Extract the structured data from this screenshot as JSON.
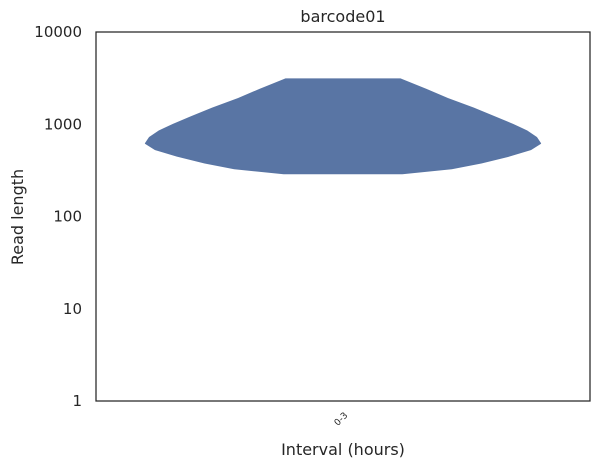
{
  "chart_data": {
    "type": "violin",
    "title": "barcode01",
    "xlabel": "Interval (hours)",
    "ylabel": "Read length",
    "yscale": "log",
    "ylim": [
      1,
      10000
    ],
    "yticks": [
      "1",
      "10",
      "100",
      "1000",
      "10000"
    ],
    "categories": [
      "0-3"
    ],
    "grid": false,
    "violin_color": "#5975a4",
    "violins": [
      {
        "category": "0-3",
        "min": 290,
        "max": 3100,
        "profile": [
          {
            "y": 290,
            "density": 0.3
          },
          {
            "y": 330,
            "density": 0.55
          },
          {
            "y": 380,
            "density": 0.7
          },
          {
            "y": 450,
            "density": 0.84
          },
          {
            "y": 530,
            "density": 0.95
          },
          {
            "y": 620,
            "density": 1.0
          },
          {
            "y": 720,
            "density": 0.98
          },
          {
            "y": 850,
            "density": 0.93
          },
          {
            "y": 1000,
            "density": 0.86
          },
          {
            "y": 1200,
            "density": 0.77
          },
          {
            "y": 1500,
            "density": 0.66
          },
          {
            "y": 1900,
            "density": 0.53
          },
          {
            "y": 2400,
            "density": 0.42
          },
          {
            "y": 3100,
            "density": 0.29
          }
        ]
      }
    ]
  }
}
